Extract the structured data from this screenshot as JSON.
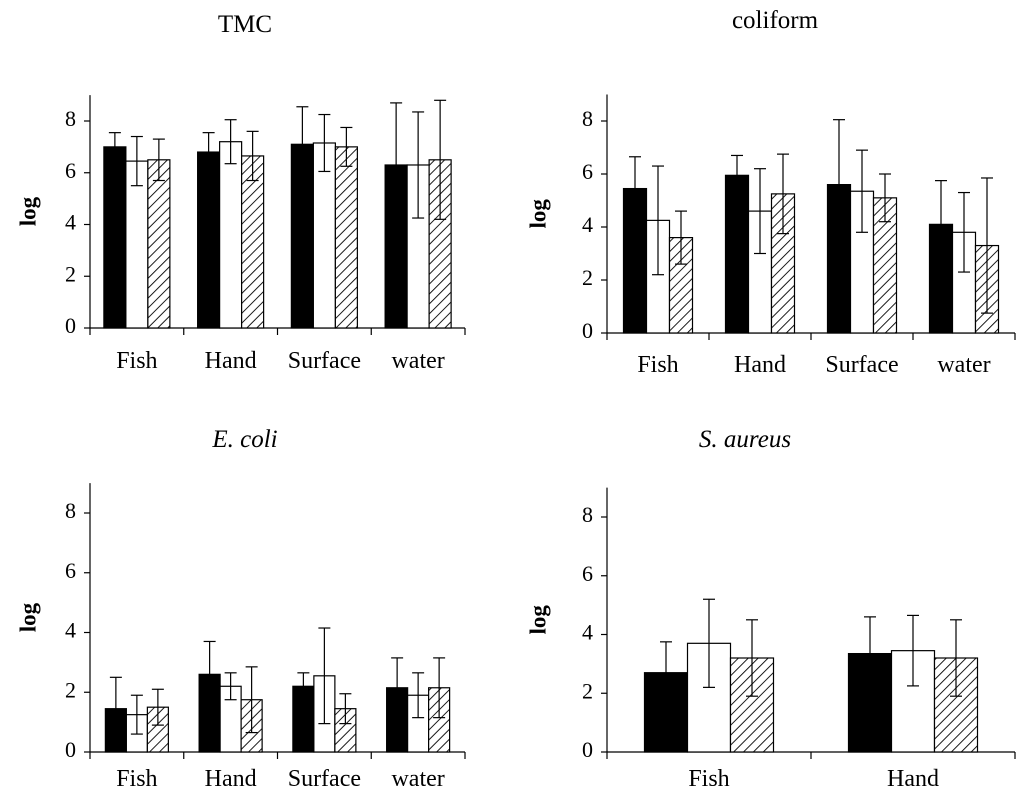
{
  "chart_data": [
    {
      "type": "bar",
      "title": "TMC",
      "ylabel": "log",
      "ylim": [
        0,
        9
      ],
      "yticks": [
        "0",
        "2",
        "4",
        "6",
        "8"
      ],
      "categories": [
        "Fish",
        "Hand",
        "Surface",
        "water"
      ],
      "series": [
        {
          "fill": "solid",
          "values": [
            7.0,
            6.8,
            7.1,
            6.3
          ],
          "errors": [
            0.55,
            0.75,
            1.45,
            2.4
          ]
        },
        {
          "fill": "open",
          "values": [
            6.45,
            7.2,
            7.15,
            6.3
          ],
          "errors": [
            0.95,
            0.85,
            1.1,
            2.05
          ]
        },
        {
          "fill": "hatched",
          "values": [
            6.5,
            6.65,
            7.0,
            6.5
          ],
          "errors": [
            0.8,
            0.95,
            0.75,
            2.3
          ]
        }
      ]
    },
    {
      "type": "bar",
      "title": "coliform",
      "ylabel": "log",
      "ylim": [
        0,
        9
      ],
      "yticks": [
        "0",
        "2",
        "4",
        "6",
        "8"
      ],
      "categories": [
        "Fish",
        "Hand",
        "Surface",
        "water"
      ],
      "series": [
        {
          "fill": "solid",
          "values": [
            5.45,
            5.95,
            5.6,
            4.1
          ],
          "errors": [
            1.2,
            0.75,
            2.45,
            1.65
          ]
        },
        {
          "fill": "open",
          "values": [
            4.25,
            4.6,
            5.35,
            3.8
          ],
          "errors": [
            2.05,
            1.6,
            1.55,
            1.5
          ]
        },
        {
          "fill": "hatched",
          "values": [
            3.6,
            5.25,
            5.1,
            3.3
          ],
          "errors": [
            1.0,
            1.5,
            0.9,
            2.55
          ]
        }
      ]
    },
    {
      "type": "bar",
      "title": "E. coli",
      "ylabel": "log",
      "ylim": [
        0,
        9
      ],
      "yticks": [
        "0",
        "2",
        "4",
        "6",
        "8"
      ],
      "categories": [
        "Fish",
        "Hand",
        "Surface",
        "water"
      ],
      "series": [
        {
          "fill": "solid",
          "values": [
            1.45,
            2.6,
            2.2,
            2.15
          ],
          "errors": [
            1.05,
            1.1,
            0.45,
            1.0
          ]
        },
        {
          "fill": "open",
          "values": [
            1.25,
            2.2,
            2.55,
            1.9
          ],
          "errors": [
            0.65,
            0.45,
            1.6,
            0.75
          ]
        },
        {
          "fill": "hatched",
          "values": [
            1.5,
            1.75,
            1.45,
            2.15
          ],
          "errors": [
            0.6,
            1.1,
            0.5,
            1.0
          ]
        }
      ]
    },
    {
      "type": "bar",
      "title": "S. aureus",
      "ylabel": "log",
      "ylim": [
        0,
        9
      ],
      "yticks": [
        "0",
        "2",
        "4",
        "6",
        "8"
      ],
      "categories": [
        "Fish",
        "Hand"
      ],
      "series": [
        {
          "fill": "solid",
          "values": [
            2.7,
            3.35
          ],
          "errors": [
            1.05,
            1.25
          ]
        },
        {
          "fill": "open",
          "values": [
            3.7,
            3.45
          ],
          "errors": [
            1.5,
            1.2
          ]
        },
        {
          "fill": "hatched",
          "values": [
            3.2,
            3.2
          ],
          "errors": [
            1.3,
            1.3
          ]
        }
      ]
    }
  ]
}
